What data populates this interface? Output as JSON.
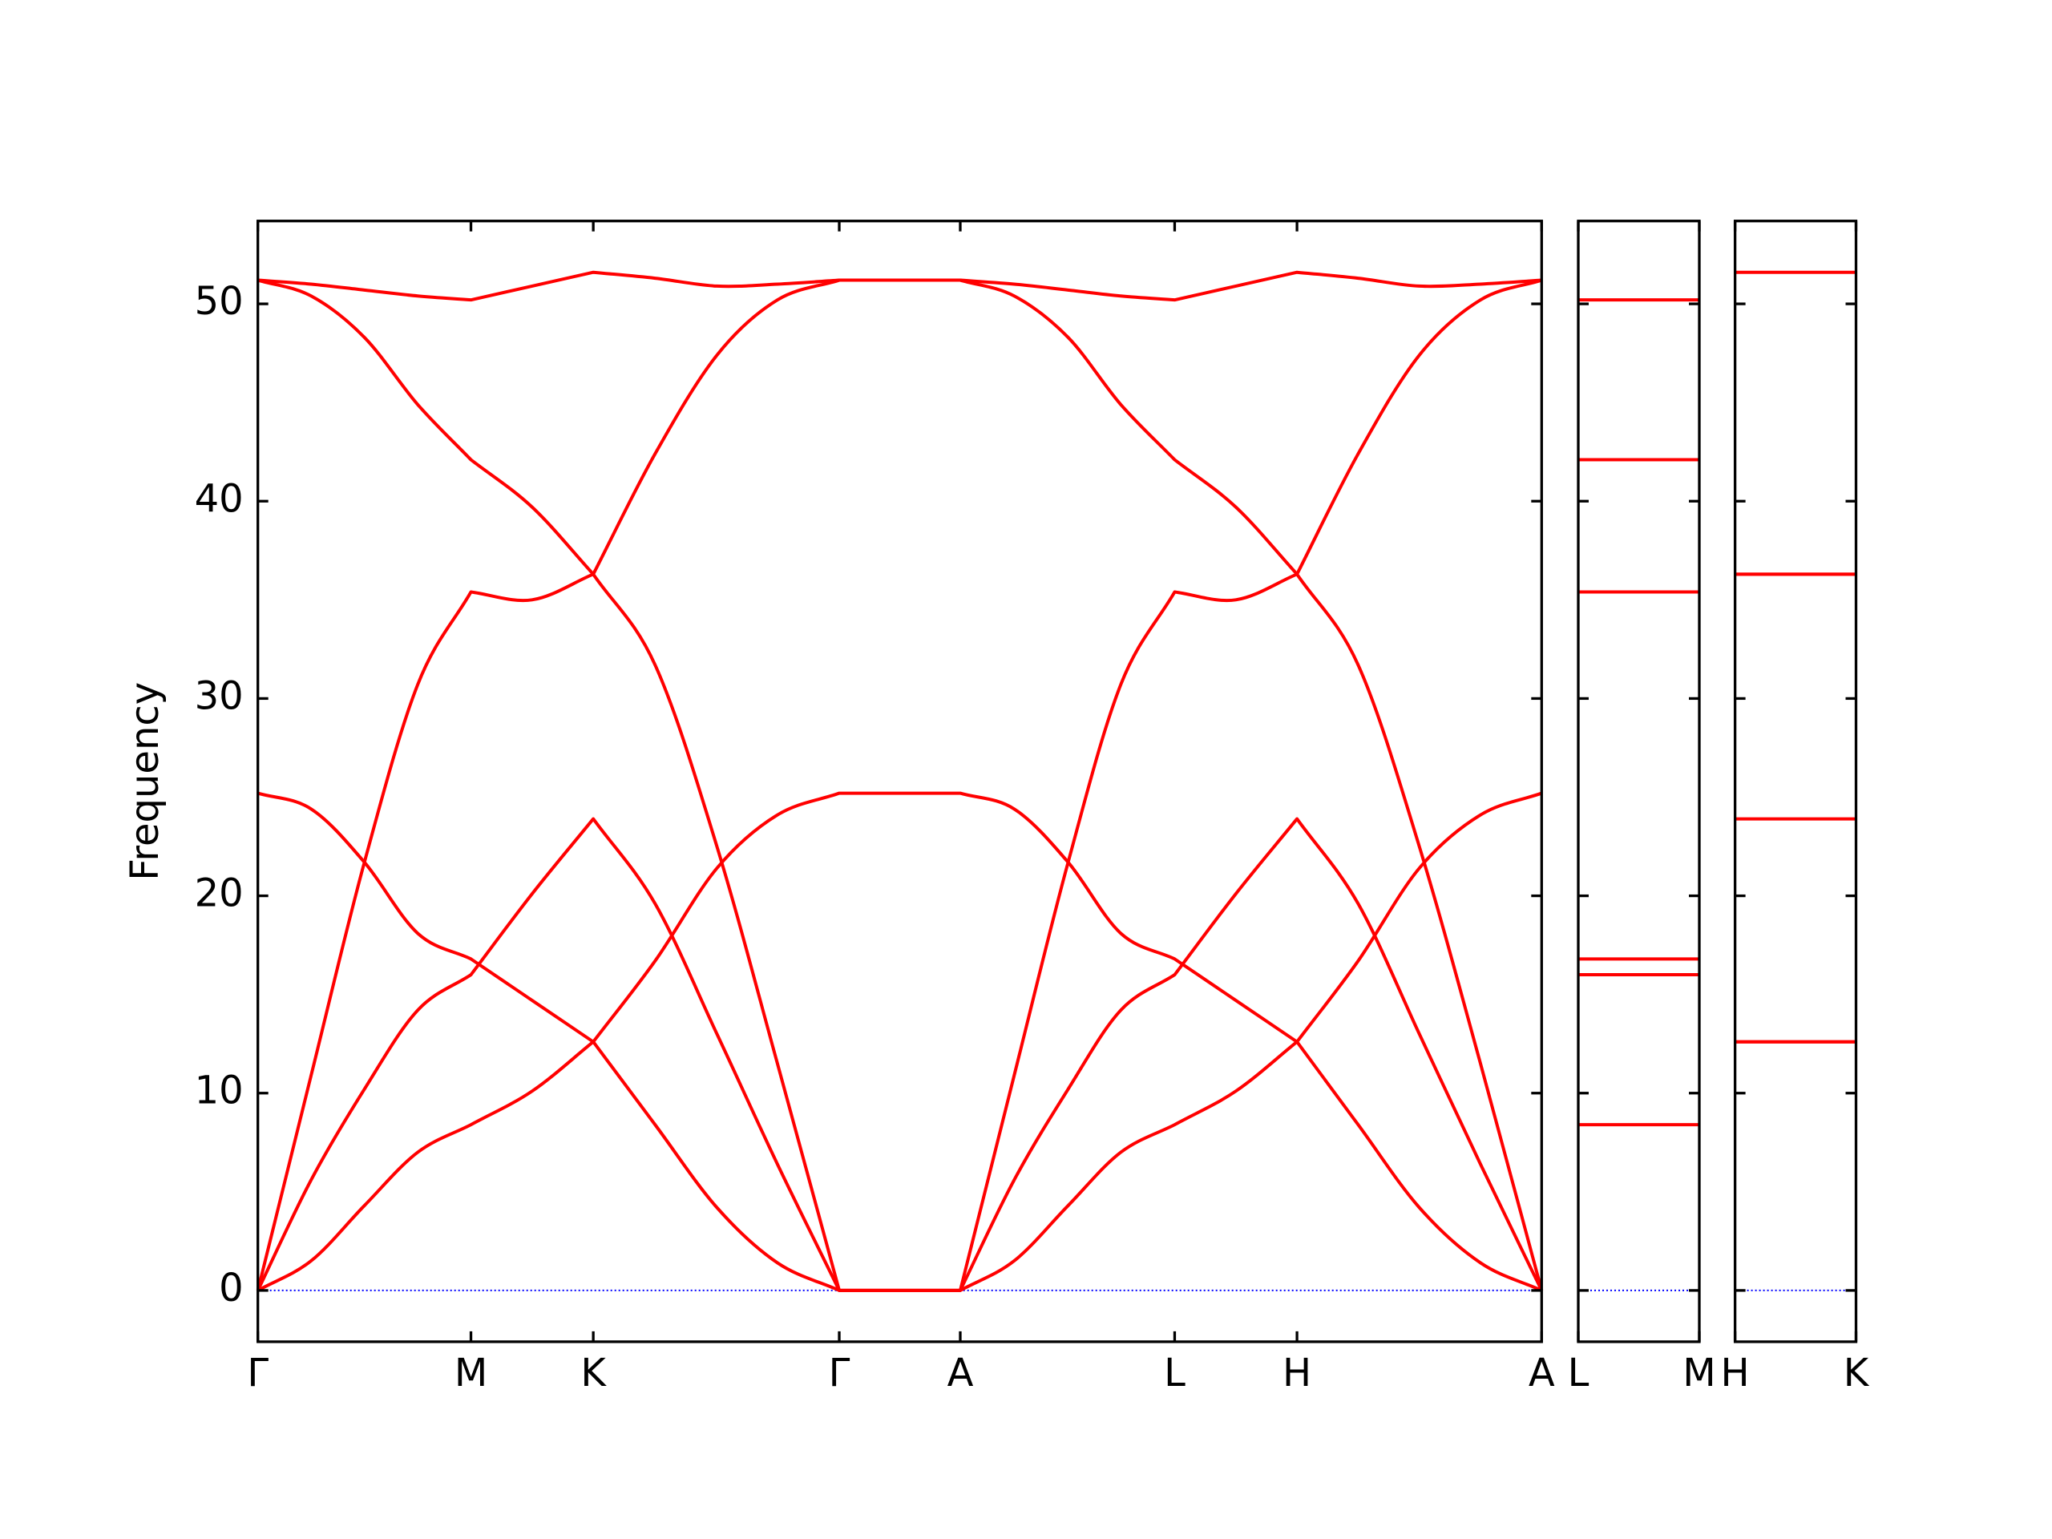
{
  "chart_data": [
    {
      "type": "line",
      "ylabel": "Frequency",
      "x": [
        0,
        0.405,
        0.81,
        1.215,
        1.62,
        2.085,
        2.55,
        3.02,
        3.49,
        3.95,
        4.42,
        4.88,
        5.34,
        5.75,
        6.16,
        6.56,
        6.97,
        7.435,
        7.9,
        8.365,
        8.83,
        9.295,
        9.76
      ],
      "series": [
        {
          "color": "#ff0000",
          "values": [
            51.2,
            51.0,
            50.7,
            50.4,
            50.2,
            50.9,
            51.6,
            51.3,
            50.9,
            51.0,
            51.2,
            51.2,
            51.2,
            51.0,
            50.7,
            50.4,
            50.2,
            50.9,
            51.6,
            51.3,
            50.9,
            51.0,
            51.2
          ]
        },
        {
          "color": "#ff0000",
          "values": [
            51.2,
            50.4,
            48.3,
            44.9,
            42.1,
            39.7,
            36.3,
            31.7,
            22.5,
            11.5,
            0,
            0,
            0,
            10.9,
            21.7,
            30.7,
            35.4,
            35.0,
            36.3,
            42.4,
            47.4,
            50.2,
            51.2
          ]
        },
        {
          "color": "#ff0000",
          "values": [
            0,
            10.9,
            21.7,
            30.7,
            35.4,
            35.0,
            36.3,
            42.4,
            47.4,
            50.2,
            51.2,
            51.2,
            51.2,
            50.4,
            48.3,
            44.9,
            42.1,
            39.7,
            36.3,
            31.7,
            22.5,
            11.5,
            0
          ]
        },
        {
          "color": "#ff0000",
          "values": [
            0,
            5.6,
            10.2,
            14.2,
            16.0,
            20.1,
            23.9,
            19.6,
            13.0,
            6.4,
            0,
            0,
            0,
            5.6,
            10.2,
            14.2,
            16.0,
            20.1,
            23.9,
            19.6,
            13.0,
            6.4,
            0
          ]
        },
        {
          "color": "#ff0000",
          "values": [
            0,
            1.5,
            4.3,
            7.0,
            8.4,
            10.1,
            12.6,
            16.7,
            21.4,
            24.1,
            25.2,
            25.2,
            25.2,
            24.4,
            21.7,
            18.1,
            16.8,
            14.7,
            12.6,
            8.4,
            4.2,
            1.4,
            0
          ]
        },
        {
          "color": "#ff0000",
          "values": [
            25.2,
            24.4,
            21.7,
            18.1,
            16.8,
            14.7,
            12.6,
            8.4,
            4.2,
            1.4,
            0,
            0,
            0,
            1.5,
            4.3,
            7.0,
            8.4,
            10.1,
            12.6,
            16.7,
            21.4,
            24.1,
            25.2
          ]
        }
      ],
      "xlim": [
        0,
        9.76
      ],
      "xticks": [
        {
          "value": 0,
          "label": "Γ"
        },
        {
          "value": 1.62,
          "label": "M"
        },
        {
          "value": 2.55,
          "label": "K"
        },
        {
          "value": 4.42,
          "label": "Γ"
        },
        {
          "value": 5.34,
          "label": "A"
        },
        {
          "value": 6.97,
          "label": "L"
        },
        {
          "value": 7.9,
          "label": "H"
        },
        {
          "value": 9.76,
          "label": "A"
        }
      ],
      "ylim": [
        -2.6,
        54.2
      ],
      "yticks": [
        0,
        10,
        20,
        30,
        40,
        50
      ],
      "ytick_labels": true,
      "zero_line": {
        "color": "#0000ff",
        "style": "dotted"
      }
    },
    {
      "type": "line",
      "x": [
        0,
        1
      ],
      "series": [
        {
          "color": "#ff0000",
          "values": [
            50.2,
            50.2
          ]
        },
        {
          "color": "#ff0000",
          "values": [
            42.1,
            42.1
          ]
        },
        {
          "color": "#ff0000",
          "values": [
            35.4,
            35.4
          ]
        },
        {
          "color": "#ff0000",
          "values": [
            16.8,
            16.8
          ]
        },
        {
          "color": "#ff0000",
          "values": [
            16.0,
            16.0
          ]
        },
        {
          "color": "#ff0000",
          "values": [
            8.4,
            8.4
          ]
        }
      ],
      "xlim": [
        0,
        1
      ],
      "xticks": [
        {
          "value": 0,
          "label": "L"
        },
        {
          "value": 1,
          "label": "M"
        }
      ],
      "ylim": [
        -2.6,
        54.2
      ],
      "yticks": [
        0,
        10,
        20,
        30,
        40,
        50
      ],
      "ytick_labels": false,
      "zero_line": {
        "color": "#0000ff",
        "style": "dotted"
      }
    },
    {
      "type": "line",
      "x": [
        0,
        1
      ],
      "series": [
        {
          "color": "#ff0000",
          "values": [
            51.6,
            51.6
          ]
        },
        {
          "color": "#ff0000",
          "values": [
            36.3,
            36.3
          ]
        },
        {
          "color": "#ff0000",
          "values": [
            36.3,
            36.3
          ]
        },
        {
          "color": "#ff0000",
          "values": [
            23.9,
            23.9
          ]
        },
        {
          "color": "#ff0000",
          "values": [
            12.6,
            12.6
          ]
        },
        {
          "color": "#ff0000",
          "values": [
            12.6,
            12.6
          ]
        }
      ],
      "xlim": [
        0,
        1
      ],
      "xticks": [
        {
          "value": 0,
          "label": "H"
        },
        {
          "value": 1,
          "label": "K"
        }
      ],
      "ylim": [
        -2.6,
        54.2
      ],
      "yticks": [
        0,
        10,
        20,
        30,
        40,
        50
      ],
      "ytick_labels": false,
      "zero_line": {
        "color": "#0000ff",
        "style": "dotted"
      }
    }
  ]
}
